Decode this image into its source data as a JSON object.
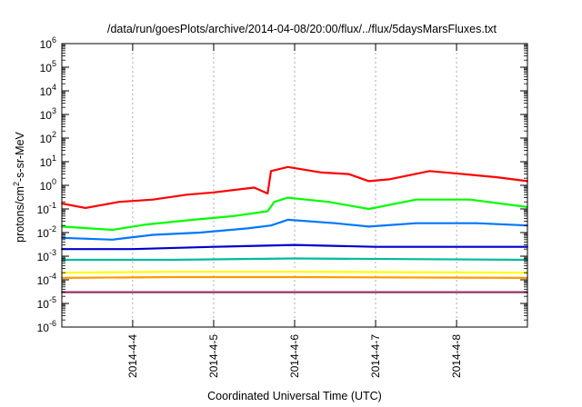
{
  "chart_data": {
    "type": "line",
    "title": "/data/run/goesPlots/archive/2014-04-08/20:00/flux/../flux/5daysMarsFluxes.txt",
    "xlabel": "Coordinated Universal Time (UTC)",
    "ylabel": "protons/cm2-s-sr-MeV",
    "ylabel_parts": [
      "protons/cm",
      "2",
      "-s-sr-MeV"
    ],
    "yscale": "log",
    "ylim": [
      1e-06,
      1000000.0
    ],
    "xlim": [
      "2014-04-03 03:00",
      "2014-04-08 21:00"
    ],
    "grid": true,
    "legend": "none",
    "x_ticks": [
      {
        "value": "2014-04-04",
        "label": "2014-4-4"
      },
      {
        "value": "2014-04-05",
        "label": "2014-4-5"
      },
      {
        "value": "2014-04-06",
        "label": "2014-4-6"
      },
      {
        "value": "2014-04-07",
        "label": "2014-4-7"
      },
      {
        "value": "2014-04-08",
        "label": "2014-4-8"
      }
    ],
    "y_ticks": [
      {
        "value": 1e-06,
        "base": "10",
        "exp": "-6"
      },
      {
        "value": 1e-05,
        "base": "10",
        "exp": "-5"
      },
      {
        "value": 0.0001,
        "base": "10",
        "exp": "-4"
      },
      {
        "value": 0.001,
        "base": "10",
        "exp": "-3"
      },
      {
        "value": 0.01,
        "base": "10",
        "exp": "-2"
      },
      {
        "value": 0.1,
        "base": "10",
        "exp": "-1"
      },
      {
        "value": 1,
        "base": "10",
        "exp": "0"
      },
      {
        "value": 10,
        "base": "10",
        "exp": "1"
      },
      {
        "value": 100,
        "base": "10",
        "exp": "2"
      },
      {
        "value": 1000.0,
        "base": "10",
        "exp": "3"
      },
      {
        "value": 10000.0,
        "base": "10",
        "exp": "4"
      },
      {
        "value": 100000.0,
        "base": "10",
        "exp": "5"
      },
      {
        "value": 1000000.0,
        "base": "10",
        "exp": "6"
      }
    ],
    "series": [
      {
        "color": "#ff0000",
        "values": [
          [
            "2014-04-03 03:00",
            0.17
          ],
          [
            "2014-04-03 10:00",
            0.11
          ],
          [
            "2014-04-03 20:00",
            0.2
          ],
          [
            "2014-04-04 06:00",
            0.25
          ],
          [
            "2014-04-04 16:00",
            0.4
          ],
          [
            "2014-04-05 00:00",
            0.5
          ],
          [
            "2014-04-05 12:00",
            0.8
          ],
          [
            "2014-04-05 16:00",
            0.45
          ],
          [
            "2014-04-05 17:00",
            4.0
          ],
          [
            "2014-04-05 22:00",
            6.0
          ],
          [
            "2014-04-06 08:00",
            3.5
          ],
          [
            "2014-04-06 16:00",
            3.0
          ],
          [
            "2014-04-06 22:00",
            1.5
          ],
          [
            "2014-04-07 04:00",
            1.8
          ],
          [
            "2014-04-07 16:00",
            4.0
          ],
          [
            "2014-04-08 02:00",
            3.0
          ],
          [
            "2014-04-08 12:00",
            2.2
          ],
          [
            "2014-04-08 21:00",
            1.5
          ]
        ]
      },
      {
        "color": "#00ff00",
        "values": [
          [
            "2014-04-03 03:00",
            0.018
          ],
          [
            "2014-04-03 18:00",
            0.013
          ],
          [
            "2014-04-04 04:00",
            0.022
          ],
          [
            "2014-04-04 18:00",
            0.035
          ],
          [
            "2014-04-05 06:00",
            0.05
          ],
          [
            "2014-04-05 16:00",
            0.08
          ],
          [
            "2014-04-05 18:00",
            0.2
          ],
          [
            "2014-04-05 22:00",
            0.3
          ],
          [
            "2014-04-06 10:00",
            0.2
          ],
          [
            "2014-04-06 22:00",
            0.1
          ],
          [
            "2014-04-07 12:00",
            0.25
          ],
          [
            "2014-04-08 04:00",
            0.25
          ],
          [
            "2014-04-08 21:00",
            0.12
          ]
        ]
      },
      {
        "color": "#0077ff",
        "values": [
          [
            "2014-04-03 03:00",
            0.006
          ],
          [
            "2014-04-03 18:00",
            0.005
          ],
          [
            "2014-04-04 06:00",
            0.008
          ],
          [
            "2014-04-04 20:00",
            0.01
          ],
          [
            "2014-04-05 10:00",
            0.015
          ],
          [
            "2014-04-05 17:00",
            0.02
          ],
          [
            "2014-04-05 22:00",
            0.035
          ],
          [
            "2014-04-06 12:00",
            0.025
          ],
          [
            "2014-04-06 22:00",
            0.018
          ],
          [
            "2014-04-07 12:00",
            0.025
          ],
          [
            "2014-04-08 06:00",
            0.025
          ],
          [
            "2014-04-08 21:00",
            0.02
          ]
        ]
      },
      {
        "color": "#0000cc",
        "values": [
          [
            "2014-04-03 03:00",
            0.002
          ],
          [
            "2014-04-04 00:00",
            0.002
          ],
          [
            "2014-04-05 00:00",
            0.0025
          ],
          [
            "2014-04-06 00:00",
            0.003
          ],
          [
            "2014-04-07 00:00",
            0.0025
          ],
          [
            "2014-04-08 21:00",
            0.0025
          ]
        ]
      },
      {
        "color": "#00bb99",
        "values": [
          [
            "2014-04-03 03:00",
            0.0007
          ],
          [
            "2014-04-04 12:00",
            0.0007
          ],
          [
            "2014-04-06 00:00",
            0.0008
          ],
          [
            "2014-04-08 21:00",
            0.0007
          ]
        ]
      },
      {
        "color": "#ffff00",
        "values": [
          [
            "2014-04-03 03:00",
            0.0002
          ],
          [
            "2014-04-04 12:00",
            0.00022
          ],
          [
            "2014-04-06 00:00",
            0.00022
          ],
          [
            "2014-04-08 21:00",
            0.0002
          ]
        ]
      },
      {
        "color": "#ff9900",
        "values": [
          [
            "2014-04-03 03:00",
            0.00012
          ],
          [
            "2014-04-04 12:00",
            0.00013
          ],
          [
            "2014-04-06 00:00",
            0.00013
          ],
          [
            "2014-04-08 21:00",
            0.00012
          ]
        ]
      },
      {
        "color": "#993366",
        "values": [
          [
            "2014-04-03 03:00",
            3e-05
          ],
          [
            "2014-04-04 12:00",
            3e-05
          ],
          [
            "2014-04-06 00:00",
            3e-05
          ],
          [
            "2014-04-08 21:00",
            3e-05
          ]
        ]
      }
    ]
  }
}
